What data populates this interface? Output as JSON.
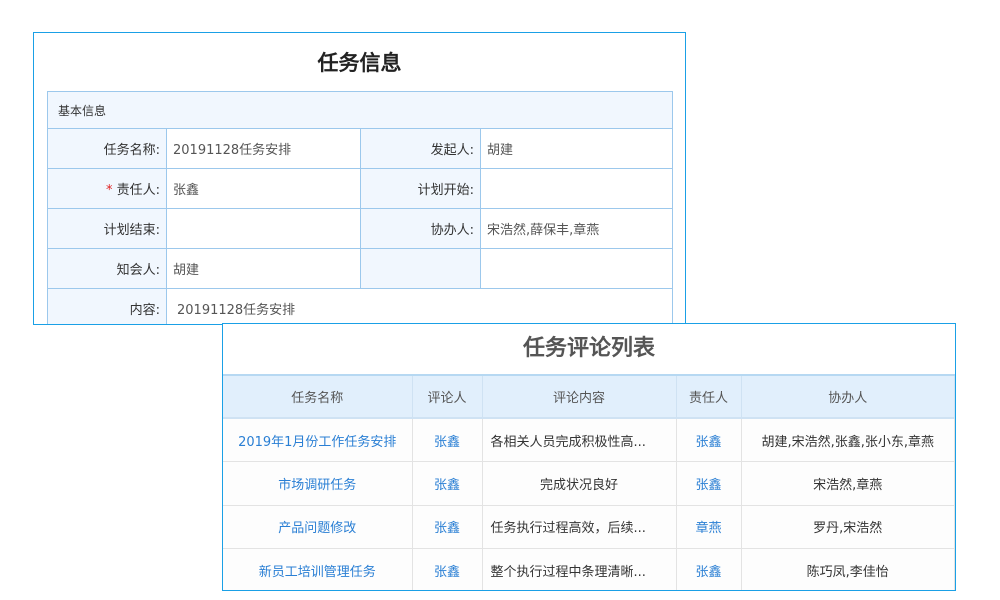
{
  "task_info": {
    "title": "任务信息",
    "section": "基本信息",
    "fields": {
      "name_label": "任务名称:",
      "name": "20191128任务安排",
      "initiator_label": "发起人:",
      "initiator": "胡建",
      "owner_required": "*",
      "owner_label": "责任人:",
      "owner": "张鑫",
      "plan_start_label": "计划开始:",
      "plan_start": "",
      "plan_end_label": "计划结束:",
      "plan_end": "",
      "assist_label": "协办人:",
      "assist": "宋浩然,薛保丰,章燕",
      "notify_label": "知会人:",
      "notify": "胡建",
      "content_label": "内容:",
      "content": "20191128任务安排"
    }
  },
  "comments": {
    "title": "任务评论列表",
    "headers": [
      "任务名称",
      "评论人",
      "评论内容",
      "责任人",
      "协办人"
    ],
    "rows": [
      [
        "2019年1月份工作任务安排",
        "张鑫",
        "各相关人员完成积极性高...",
        "张鑫",
        "胡建,宋浩然,张鑫,张小东,章燕"
      ],
      [
        "市场调研任务",
        "张鑫",
        "完成状况良好",
        "张鑫",
        "宋浩然,章燕"
      ],
      [
        "产品问题修改",
        "张鑫",
        "任务执行过程高效，后续...",
        "章燕",
        "罗丹,宋浩然"
      ],
      [
        "新员工培训管理任务",
        "张鑫",
        "整个执行过程中条理清晰...",
        "张鑫",
        "陈巧凤,李佳怡"
      ]
    ]
  },
  "colors": {
    "border": "#1aa0e6",
    "link": "#2a7fd4",
    "header_bg": "#e1effc"
  }
}
